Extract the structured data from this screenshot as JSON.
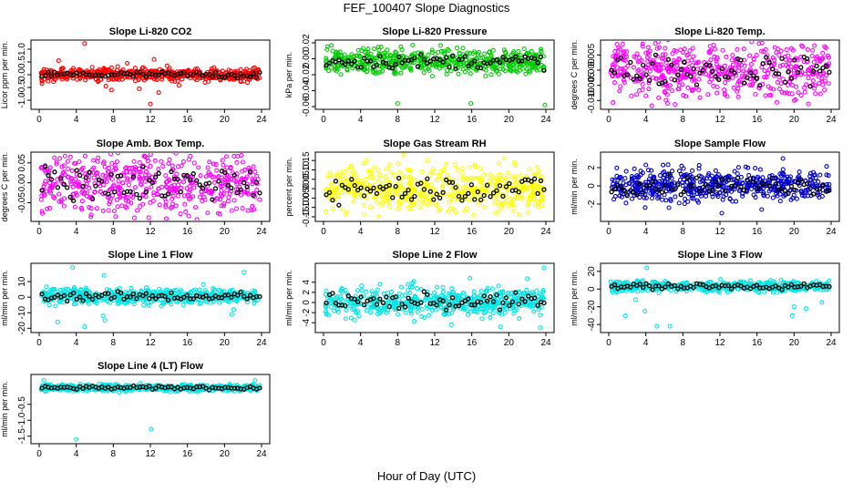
{
  "title": "FEF_100407  Slope Diagnostics",
  "x_axis_title": "Hour of Day (UTC)",
  "chart_data": [
    {
      "type": "scatter",
      "title": "Slope Li-820 CO2",
      "ylabel": "Licor ppm per min.",
      "xlim": [
        0,
        24
      ],
      "ylim": [
        -1.25,
        1.25
      ],
      "xticks": [
        0,
        4,
        8,
        12,
        16,
        20,
        24
      ],
      "yticks": [
        -1.0,
        -0.5,
        0.0,
        0.5,
        1.0
      ],
      "ytick_labels": [
        "-1.0",
        "-0.5",
        "0.0",
        "0.5",
        "1.0"
      ],
      "center": 0.0,
      "spread": 0.12,
      "color": "#ff0000",
      "outliers": [
        [
          2.1,
          0.55
        ],
        [
          4.9,
          1.22
        ],
        [
          6.5,
          0.2
        ],
        [
          7.2,
          -0.45
        ],
        [
          7.8,
          -0.6
        ],
        [
          9.5,
          0.45
        ],
        [
          10.8,
          -0.55
        ],
        [
          12.0,
          -1.15
        ],
        [
          12.4,
          0.6
        ],
        [
          12.9,
          -0.7
        ],
        [
          13.8,
          0.35
        ],
        [
          15.1,
          -0.42
        ],
        [
          0.3,
          -0.35
        ]
      ]
    },
    {
      "type": "scatter",
      "title": "Slope Li-820 Pressure",
      "ylabel": "kPa per min.",
      "xlim": [
        0,
        24
      ],
      "ylim": [
        -0.06,
        0.02
      ],
      "xticks": [
        0,
        4,
        8,
        12,
        16,
        20,
        24
      ],
      "yticks": [
        -0.06,
        -0.04,
        -0.02,
        0.0,
        0.02
      ],
      "ytick_labels": [
        "-0.06",
        "-0.04",
        "-0.02",
        "0.00",
        "0.02"
      ],
      "center": -0.003,
      "spread": 0.008,
      "color": "#00cc00",
      "outliers": [
        [
          8.0,
          -0.056
        ],
        [
          15.9,
          -0.056
        ],
        [
          23.9,
          -0.058
        ]
      ]
    },
    {
      "type": "scatter",
      "title": "Slope Li-820 Temp.",
      "ylabel": "degrees C per min.",
      "xlim": [
        0,
        24
      ],
      "ylim": [
        -0.012,
        0.009
      ],
      "xticks": [
        0,
        4,
        8,
        12,
        16,
        20,
        24
      ],
      "yticks": [
        -0.01,
        -0.005,
        0.0,
        0.005
      ],
      "ytick_labels": [
        "-0.010",
        "-0.005",
        "0.000",
        "0.005"
      ],
      "center": 0.0,
      "spread": 0.0045,
      "color": "#ff00ff",
      "outliers": [
        [
          0.9,
          0.0085
        ]
      ]
    },
    {
      "type": "scatter",
      "title": "Slope Amb. Box Temp.",
      "ylabel": "degrees C per min.",
      "xlim": [
        0,
        24
      ],
      "ylim": [
        -0.09,
        0.07
      ],
      "xticks": [
        0,
        4,
        8,
        12,
        16,
        20,
        24
      ],
      "yticks": [
        -0.05,
        0.0,
        0.05
      ],
      "ytick_labels": [
        "-0.05",
        "0.00",
        "0.05"
      ],
      "center": 0.0,
      "spread": 0.04,
      "color": "#ff00ff",
      "outliers": []
    },
    {
      "type": "scatter",
      "title": "Slope Gas Stream RH",
      "ylabel": "percent per min.",
      "xlim": [
        0,
        24
      ],
      "ylim": [
        -0.16,
        0.18
      ],
      "xticks": [
        0,
        4,
        8,
        12,
        16,
        20,
        24
      ],
      "yticks": [
        -0.15,
        -0.1,
        -0.05,
        0.0,
        0.05,
        0.1,
        0.15
      ],
      "ytick_labels": [
        "-0.15",
        "-0.10",
        "-0.05",
        "0.00",
        "0.05",
        "0.10",
        "0.15"
      ],
      "center": 0.0,
      "spread": 0.06,
      "color": "#ffff00",
      "outliers": [
        [
          5.9,
          -0.15
        ],
        [
          13.5,
          -0.12
        ],
        [
          18.9,
          -0.12
        ]
      ]
    },
    {
      "type": "scatter",
      "title": "Slope Sample Flow",
      "ylabel": "ml/min per min.",
      "xlim": [
        0,
        24
      ],
      "ylim": [
        -3.6,
        3.4
      ],
      "xticks": [
        0,
        4,
        8,
        12,
        16,
        20,
        24
      ],
      "yticks": [
        -2,
        0,
        2
      ],
      "ytick_labels": [
        "-2",
        "0",
        "2"
      ],
      "center": 0.1,
      "spread": 0.9,
      "color": "#0000cc",
      "outliers": [
        [
          12.2,
          -3.0
        ],
        [
          18.8,
          3.0
        ],
        [
          4.0,
          2.3
        ],
        [
          16.5,
          -2.6
        ],
        [
          6.5,
          -2.4
        ]
      ]
    },
    {
      "type": "scatter",
      "title": "Slope Line 1 Flow",
      "ylabel": "ml/min per min.",
      "xlim": [
        0,
        24
      ],
      "ylim": [
        -21,
        20
      ],
      "xticks": [
        0,
        4,
        8,
        12,
        16,
        20,
        24
      ],
      "yticks": [
        -20,
        -10,
        0,
        10
      ],
      "ytick_labels": [
        "-20",
        "-10",
        "0",
        "10"
      ],
      "center": 0.5,
      "spread": 2.5,
      "color": "#00e5e5",
      "outliers": [
        [
          2.0,
          -16
        ],
        [
          3.6,
          19
        ],
        [
          4.9,
          -19
        ],
        [
          6.9,
          -12
        ],
        [
          7.1,
          -15
        ],
        [
          7.0,
          14
        ],
        [
          1.1,
          -5
        ],
        [
          21.0,
          -8
        ],
        [
          22.1,
          16
        ],
        [
          20.8,
          -11
        ]
      ]
    },
    {
      "type": "scatter",
      "title": "Slope Line 2 Flow",
      "ylabel": "ml/min per min.",
      "xlim": [
        0,
        24
      ],
      "ylim": [
        -5.4,
        7.2
      ],
      "xticks": [
        0,
        4,
        8,
        12,
        16,
        20,
        24
      ],
      "yticks": [
        -4,
        -2,
        0,
        2,
        4
      ],
      "ytick_labels": [
        "-4",
        "-2",
        "0",
        "2",
        "4"
      ],
      "center": 0.2,
      "spread": 1.4,
      "color": "#00e5e5",
      "outliers": [
        [
          15.8,
          4.8
        ],
        [
          22.0,
          4.7
        ],
        [
          23.8,
          6.8
        ],
        [
          19.1,
          -4.8
        ],
        [
          23.4,
          -5.0
        ],
        [
          13.8,
          -4.4
        ],
        [
          9.8,
          -3.7
        ]
      ]
    },
    {
      "type": "scatter",
      "title": "Slope Line 3 Flow",
      "ylabel": "ml/min per min.",
      "xlim": [
        0,
        24
      ],
      "ylim": [
        -46,
        26
      ],
      "xticks": [
        0,
        4,
        8,
        12,
        16,
        20,
        24
      ],
      "yticks": [
        -40,
        -20,
        0,
        20
      ],
      "ytick_labels": [
        "-40",
        "-20",
        "0",
        "20"
      ],
      "center": 3,
      "spread": 3,
      "color": "#00e5e5",
      "outliers": [
        [
          4.1,
          24
        ],
        [
          1.8,
          -30
        ],
        [
          3.9,
          -25
        ],
        [
          5.2,
          -42
        ],
        [
          6.6,
          -42
        ],
        [
          2.9,
          -12
        ],
        [
          20.0,
          -20
        ],
        [
          21.3,
          -22
        ],
        [
          23.0,
          -15
        ],
        [
          19.8,
          -30
        ]
      ]
    },
    {
      "type": "scatter",
      "title": "Slope Line 4 (LT) Flow",
      "ylabel": "ml/min per min.",
      "xlim": [
        0,
        24
      ],
      "ylim": [
        -1.65,
        0.35
      ],
      "xticks": [
        0,
        4,
        8,
        12,
        16,
        20,
        24
      ],
      "yticks": [
        -1.5,
        -1.0,
        -0.5
      ],
      "ytick_labels": [
        "-1.5",
        "-1.0",
        "-0.5"
      ],
      "center": 0.02,
      "spread": 0.05,
      "color": "#00e5e5",
      "outliers": [
        [
          4.0,
          -1.6
        ],
        [
          12.1,
          -1.28
        ],
        [
          0.5,
          0.25
        ],
        [
          23.3,
          0.25
        ],
        [
          3.6,
          -0.1
        ]
      ]
    }
  ]
}
